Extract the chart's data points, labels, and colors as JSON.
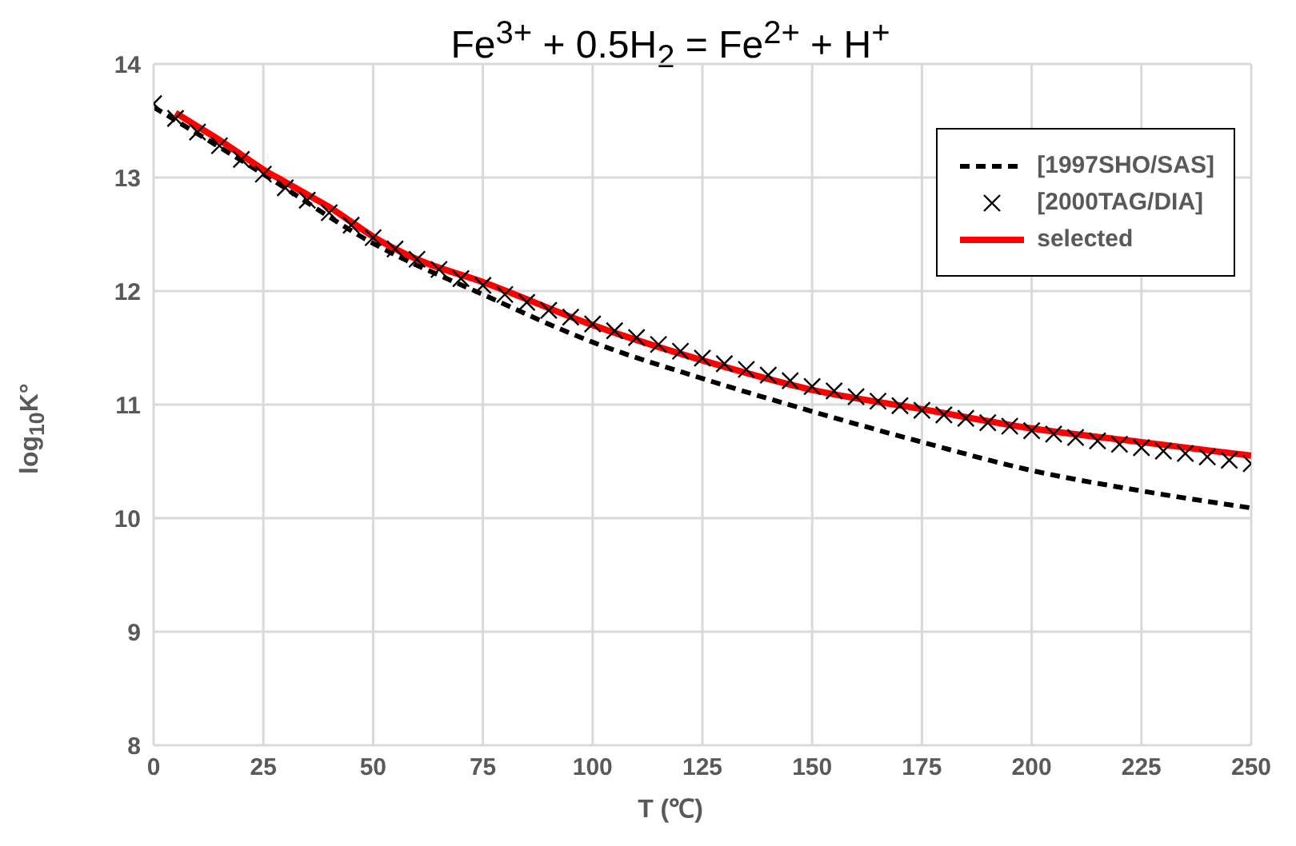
{
  "chart_data": {
    "type": "line",
    "title": "Fe$^{3+}$ + 0.5H$_{2}$ = Fe$^{2+}$ + H$^{+}$",
    "xlabel": "T (℃)",
    "ylabel": "log$_{10}$K°",
    "xlim": [
      0,
      250
    ],
    "xticks": [
      0,
      25,
      50,
      75,
      100,
      125,
      150,
      175,
      200,
      225,
      250
    ],
    "ylim": [
      8,
      14
    ],
    "yticks": [
      8,
      9,
      10,
      11,
      12,
      13,
      14
    ],
    "grid": true,
    "legend": "top right",
    "series": [
      {
        "name": "[1997SHO/SAS]",
        "color": "#000000",
        "line_style": "dashed",
        "marker": "none",
        "x": [
          0,
          25,
          50,
          75,
          100,
          125,
          150,
          175,
          200,
          225,
          250
        ],
        "values": [
          13.62,
          13.03,
          12.42,
          11.97,
          11.55,
          11.23,
          10.94,
          10.67,
          10.42,
          10.24,
          10.09
        ]
      },
      {
        "name": "[2000TAG/DIA]",
        "type": "scatter",
        "color": "#000000",
        "marker": "cross",
        "x": [
          0,
          5,
          10,
          15,
          20,
          25,
          30,
          35,
          40,
          45,
          50,
          55,
          60,
          65,
          70,
          75,
          80,
          85,
          90,
          95,
          100,
          105,
          110,
          115,
          120,
          125,
          130,
          135,
          140,
          145,
          150,
          155,
          160,
          165,
          170,
          175,
          180,
          185,
          190,
          195,
          200,
          205,
          210,
          215,
          220,
          225,
          230,
          235,
          240,
          245,
          250
        ],
        "values": [
          13.65,
          13.52,
          13.4,
          13.28,
          13.16,
          13.03,
          12.91,
          12.8,
          12.69,
          12.58,
          12.47,
          12.37,
          12.28,
          12.19,
          12.11,
          12.05,
          11.97,
          11.9,
          11.83,
          11.77,
          11.71,
          11.65,
          11.59,
          11.53,
          11.47,
          11.41,
          11.36,
          11.31,
          11.26,
          11.21,
          11.16,
          11.12,
          11.07,
          11.03,
          10.99,
          10.95,
          10.91,
          10.88,
          10.84,
          10.81,
          10.77,
          10.74,
          10.71,
          10.68,
          10.65,
          10.62,
          10.59,
          10.57,
          10.54,
          10.51,
          10.48
        ]
      },
      {
        "name": "selected",
        "color": "#ff0000",
        "line_style": "solid",
        "marker": "none",
        "x": [
          5,
          10,
          15,
          20,
          25,
          30,
          35,
          40,
          45,
          50,
          60,
          75,
          100,
          125,
          150,
          175,
          200,
          225,
          250
        ],
        "values": [
          13.57,
          13.45,
          13.33,
          13.2,
          13.07,
          12.96,
          12.85,
          12.74,
          12.61,
          12.48,
          12.28,
          12.08,
          11.7,
          11.39,
          11.13,
          10.96,
          10.79,
          10.67,
          10.55
        ]
      }
    ]
  }
}
